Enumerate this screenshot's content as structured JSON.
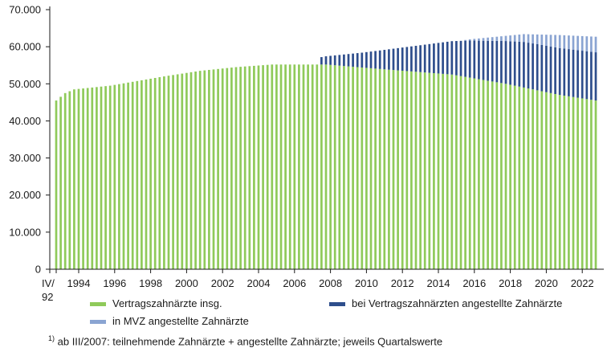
{
  "chart_data": {
    "type": "bar",
    "stacked": true,
    "x_start": {
      "year": 1992,
      "quarter": 4
    },
    "x_end": {
      "year": 2022,
      "quarter": 4
    },
    "ylim": [
      0,
      70000
    ],
    "y_ticks": [
      0,
      10000,
      20000,
      30000,
      40000,
      50000,
      60000,
      70000
    ],
    "y_tick_labels": [
      "0",
      "10.000",
      "20.000",
      "30.000",
      "40.000",
      "50.000",
      "60.000",
      "70.000"
    ],
    "x_tick_first_label": [
      "IV/",
      "92"
    ],
    "x_tick_years": [
      1994,
      1996,
      1998,
      2000,
      2002,
      2004,
      2006,
      2008,
      2010,
      2012,
      2014,
      2016,
      2018,
      2020,
      2022
    ],
    "x_tick_labels": [
      "1994",
      "1996",
      "1998",
      "2000",
      "2002",
      "2004",
      "2006",
      "2008",
      "2010",
      "2012",
      "2014",
      "2016",
      "2018",
      "2020",
      "2022"
    ],
    "grid": false,
    "legend_position": "bottom",
    "series": [
      {
        "name": "Vertragszahnärzte insg.",
        "color": "#8fca5a",
        "anchors": [
          [
            "1992-IV",
            45500
          ],
          [
            "1993-II",
            47500
          ],
          [
            "1993-IV",
            48500
          ],
          [
            "1995-IV",
            49500
          ],
          [
            "1998-IV",
            52000
          ],
          [
            "2000-IV",
            53500
          ],
          [
            "2002-IV",
            54500
          ],
          [
            "2004-IV",
            55200
          ],
          [
            "2007-IV",
            55200
          ],
          [
            "2010-IV",
            54000
          ],
          [
            "2014-IV",
            52500
          ],
          [
            "2017-IV",
            50000
          ],
          [
            "2020-IV",
            47000
          ],
          [
            "2022-IV",
            45500
          ]
        ]
      },
      {
        "name": "bei Vertragszahnärzten angestellte Zahnärzte",
        "color": "#2e4e8c",
        "start": "2007-III",
        "anchors": [
          [
            "2007-III",
            2000
          ],
          [
            "2009-IV",
            4000
          ],
          [
            "2012-IV",
            7000
          ],
          [
            "2015-IV",
            10000
          ],
          [
            "2018-IV",
            12300
          ],
          [
            "2022-IV",
            13000
          ]
        ]
      },
      {
        "name": "in MVZ angestellte Zahnärzte",
        "color": "#8aa4d2",
        "start": "2015-III",
        "anchors": [
          [
            "2015-III",
            200
          ],
          [
            "2017-IV",
            1400
          ],
          [
            "2020-IV",
            3500
          ],
          [
            "2022-IV",
            4200
          ]
        ]
      }
    ]
  },
  "footnote": {
    "marker": "1)",
    "text": " ab III/2007: teilnehmende Zahnärzte + angestellte Zahnärzte;  jeweils Quartalswerte"
  }
}
